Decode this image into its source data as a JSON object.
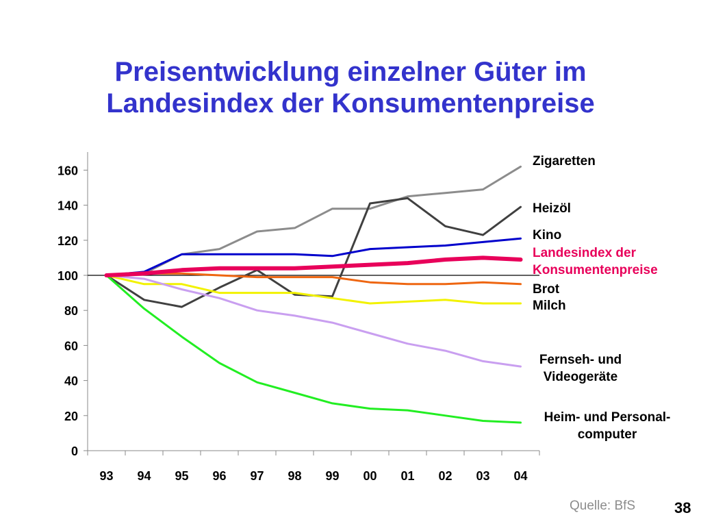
{
  "slide": {
    "title_line1": "Preisentwicklung einzelner Güter im",
    "title_line2": "Landesindex der Konsumentenpreise",
    "source": "Quelle: BfS",
    "page_number": "38"
  },
  "chart_data": {
    "type": "line",
    "title": "",
    "xlabel": "",
    "ylabel": "",
    "categories": [
      "93",
      "94",
      "95",
      "96",
      "97",
      "98",
      "99",
      "00",
      "01",
      "02",
      "03",
      "04"
    ],
    "yticks": [
      0,
      20,
      40,
      60,
      80,
      100,
      120,
      140,
      160
    ],
    "ylim": [
      0,
      170
    ],
    "reference_line": 100,
    "grid": false,
    "legend": "right-side labels at line ends",
    "series": [
      {
        "name": "Zigaretten",
        "color": "#8c8c8c",
        "width": 3,
        "values": [
          100,
          101,
          112,
          115,
          125,
          127,
          138,
          138,
          145,
          147,
          149,
          162
        ]
      },
      {
        "name": "Heizöl",
        "color": "#404040",
        "width": 3,
        "values": [
          100,
          86,
          82,
          93,
          103,
          89,
          88,
          141,
          144,
          128,
          123,
          139
        ]
      },
      {
        "name": "Kino",
        "color": "#0000cc",
        "width": 3,
        "values": [
          100,
          102,
          112,
          112,
          112,
          112,
          111,
          115,
          116,
          117,
          119,
          121
        ]
      },
      {
        "name": "Landesindex der Konsumentenpreise",
        "color": "#e8005a",
        "width": 6,
        "values": [
          100,
          101,
          103,
          104,
          104,
          104,
          105,
          106,
          107,
          109,
          110,
          109
        ]
      },
      {
        "name": "Brot",
        "color": "#ee6611",
        "width": 3,
        "values": [
          100,
          101,
          101,
          100,
          99,
          99,
          99,
          96,
          95,
          95,
          96,
          95
        ]
      },
      {
        "name": "Milch",
        "color": "#f2f200",
        "width": 3,
        "values": [
          100,
          95,
          95,
          90,
          90,
          90,
          87,
          84,
          85,
          86,
          84,
          84
        ]
      },
      {
        "name": "Fernseh- und Videogeräte",
        "color": "#c99ff0",
        "width": 3,
        "values": [
          100,
          98,
          92,
          87,
          80,
          77,
          73,
          67,
          61,
          57,
          51,
          48
        ]
      },
      {
        "name": "Heim- und Personal-computer",
        "color": "#22ee22",
        "width": 3,
        "values": [
          100,
          81,
          65,
          50,
          39,
          33,
          27,
          24,
          23,
          20,
          17,
          16
        ]
      }
    ],
    "labels": [
      {
        "id": "zigaretten",
        "lines": [
          "Zigaretten"
        ],
        "color": "#000000",
        "align": "left"
      },
      {
        "id": "heizoel",
        "lines": [
          "Heizöl"
        ],
        "color": "#000000",
        "align": "left"
      },
      {
        "id": "kino",
        "lines": [
          "Kino"
        ],
        "color": "#000000",
        "align": "left"
      },
      {
        "id": "landesindex",
        "lines": [
          "Landesindex der",
          "Konsumentenpreise"
        ],
        "color": "#e8005a",
        "align": "left"
      },
      {
        "id": "brot",
        "lines": [
          "Brot"
        ],
        "color": "#000000",
        "align": "left"
      },
      {
        "id": "milch",
        "lines": [
          "Milch"
        ],
        "color": "#000000",
        "align": "left"
      },
      {
        "id": "fernseh",
        "lines": [
          "Fernseh- und",
          "Videogeräte"
        ],
        "color": "#000000",
        "align": "center"
      },
      {
        "id": "heim",
        "lines": [
          "Heim- und Personal-",
          "computer"
        ],
        "color": "#000000",
        "align": "center"
      }
    ]
  }
}
